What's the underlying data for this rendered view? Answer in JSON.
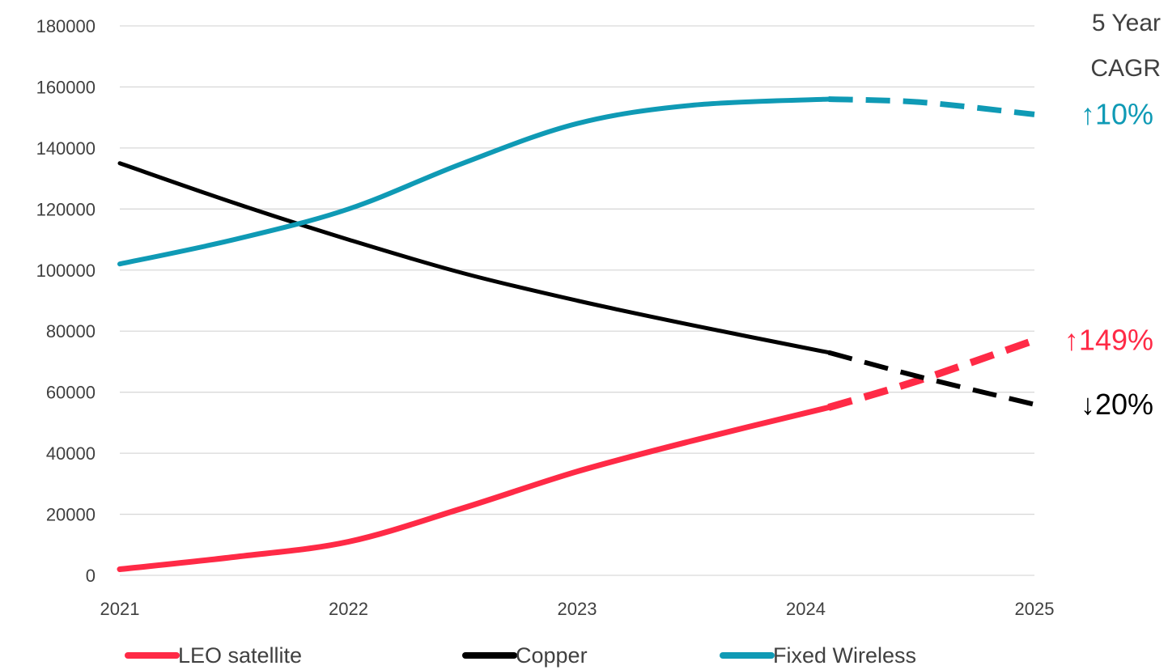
{
  "chart_data": {
    "type": "line",
    "x": [
      2021,
      2022,
      2023,
      2024,
      2025
    ],
    "ylim": [
      0,
      180000
    ],
    "yticks": [
      0,
      20000,
      40000,
      60000,
      80000,
      100000,
      120000,
      140000,
      160000,
      180000
    ],
    "xticks": [
      "2021",
      "2022",
      "2023",
      "2024",
      "2025"
    ],
    "grid": true,
    "legend_position": "bottom",
    "actual_end_x": 2024.1,
    "series": [
      {
        "name": "LEO satellite",
        "color": "#ff2a46",
        "actual": [
          [
            2021,
            2000
          ],
          [
            2021.5,
            6000
          ],
          [
            2022,
            11000
          ],
          [
            2022.5,
            22000
          ],
          [
            2023,
            34000
          ],
          [
            2023.5,
            44000
          ],
          [
            2024.1,
            55000
          ]
        ],
        "forecast": [
          [
            2024.1,
            55000
          ],
          [
            2024.5,
            64000
          ],
          [
            2025,
            77000
          ]
        ],
        "cagr": "↑149%"
      },
      {
        "name": "Copper",
        "color": "#000000",
        "actual": [
          [
            2021,
            135000
          ],
          [
            2021.5,
            122000
          ],
          [
            2022,
            110000
          ],
          [
            2022.5,
            99000
          ],
          [
            2023,
            90000
          ],
          [
            2023.5,
            82000
          ],
          [
            2024.1,
            73000
          ]
        ],
        "forecast": [
          [
            2024.1,
            73000
          ],
          [
            2024.5,
            65000
          ],
          [
            2025,
            56000
          ]
        ],
        "cagr": "↓20%"
      },
      {
        "name": "Fixed Wireless",
        "color": "#0f9ab5",
        "actual": [
          [
            2021,
            102000
          ],
          [
            2021.5,
            110000
          ],
          [
            2022,
            120000
          ],
          [
            2022.5,
            135000
          ],
          [
            2023,
            148000
          ],
          [
            2023.5,
            154000
          ],
          [
            2024.1,
            156000
          ]
        ],
        "forecast": [
          [
            2024.1,
            156000
          ],
          [
            2024.5,
            155000
          ],
          [
            2025,
            151000
          ]
        ],
        "cagr": "↑10%"
      }
    ],
    "annotation_title": [
      "5 Year",
      "CAGR"
    ]
  }
}
